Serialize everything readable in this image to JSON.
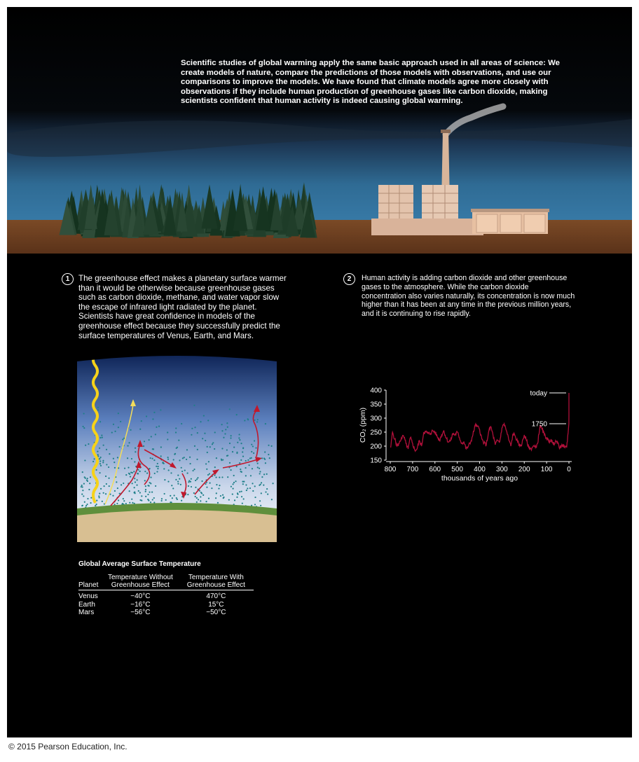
{
  "intro": "Scientific studies of global warming apply the same basic approach used in all areas of science: We create models of nature, compare the predictions of those models with observations, and use our comparisons to improve the models. We have found that climate models agree more closely with observations if they include human production of greenhouse gases like carbon dioxide, making scientists confident that human activity is indeed causing global warming.",
  "steps": [
    {
      "number": "1",
      "text": "The greenhouse effect makes a planetary surface warmer than it would be otherwise because greenhouse gases such as carbon dioxide, methane, and water vapor slow the escape of infrared light radiated by the planet. Scientists have great confidence in models of the greenhouse effect because they successfully predict the surface temperatures of Venus, Earth, and Mars."
    },
    {
      "number": "2",
      "text": "Human activity is adding carbon dioxide and other greenhouse gases to the atmosphere. While the carbon dioxide concentration also varies naturally, its concentration is now much higher than it has been at any time in the previous million years, and it is continuing to rise rapidly."
    }
  ],
  "table": {
    "title": "Global Average Surface Temperature",
    "headers": [
      "Planet",
      "Temperature Without Greenhouse Effect",
      "Temperature With Greenhouse Effect"
    ],
    "rows": [
      [
        "Venus",
        "−40°C",
        "470°C"
      ],
      [
        "Earth",
        "−16°C",
        "15°C"
      ],
      [
        "Mars",
        "−56°C",
        "−50°C"
      ]
    ]
  },
  "chart_data": {
    "type": "line",
    "xlabel": "thousands of years ago",
    "ylabel": "CO₂ (ppm)",
    "xlim": [
      800,
      0
    ],
    "ylim": [
      150,
      400
    ],
    "xticks": [
      800,
      700,
      600,
      500,
      400,
      300,
      200,
      100,
      0
    ],
    "yticks": [
      150,
      200,
      250,
      300,
      350,
      400
    ],
    "annotations": [
      {
        "label": "today",
        "x": 0,
        "y": 390
      },
      {
        "label": "1750",
        "x": 0,
        "y": 280
      }
    ],
    "series": [
      {
        "color": "#b0103a",
        "x": [
          798,
          790,
          780,
          770,
          760,
          750,
          740,
          730,
          720,
          710,
          700,
          690,
          680,
          670,
          660,
          650,
          640,
          630,
          620,
          610,
          600,
          590,
          580,
          570,
          560,
          550,
          540,
          530,
          520,
          510,
          500,
          490,
          480,
          470,
          460,
          450,
          440,
          430,
          420,
          410,
          400,
          390,
          380,
          370,
          360,
          350,
          340,
          330,
          320,
          310,
          300,
          290,
          280,
          270,
          260,
          250,
          240,
          230,
          220,
          210,
          200,
          190,
          180,
          170,
          160,
          150,
          140,
          130,
          120,
          110,
          100,
          90,
          80,
          70,
          60,
          50,
          40,
          30,
          20,
          10,
          2,
          0.3,
          0.1,
          0
        ],
        "values": [
          195,
          250,
          225,
          200,
          210,
          230,
          235,
          210,
          190,
          230,
          210,
          185,
          190,
          220,
          200,
          250,
          250,
          245,
          245,
          255,
          250,
          235,
          220,
          240,
          255,
          230,
          215,
          220,
          245,
          240,
          250,
          230,
          210,
          215,
          190,
          200,
          215,
          240,
          275,
          270,
          260,
          225,
          210,
          205,
          250,
          270,
          240,
          205,
          220,
          215,
          265,
          280,
          255,
          225,
          200,
          245,
          235,
          215,
          200,
          210,
          240,
          220,
          195,
          190,
          200,
          195,
          210,
          270,
          260,
          240,
          230,
          215,
          225,
          205,
          220,
          210,
          195,
          200,
          200,
          195,
          265,
          280,
          310,
          390
        ]
      }
    ]
  }
}
